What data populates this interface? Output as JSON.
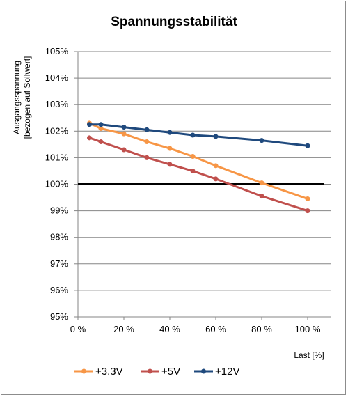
{
  "chart_data": {
    "type": "line",
    "title": "Spannungsstabilität",
    "ylabel_line1": "Ausgangsspannung",
    "ylabel_line2": "[bezogen auf Sollwert]",
    "xlabel": "Last [%]",
    "xlim": [
      0,
      110
    ],
    "ylim": [
      95,
      105
    ],
    "x_ticks": [
      0,
      20,
      40,
      60,
      80,
      100
    ],
    "x_tick_labels": [
      "0 %",
      "20 %",
      "40 %",
      "60 %",
      "80 %",
      "100 %"
    ],
    "y_ticks": [
      95,
      96,
      97,
      98,
      99,
      100,
      101,
      102,
      103,
      104,
      105
    ],
    "y_tick_labels": [
      "95%",
      "96%",
      "97%",
      "98%",
      "99%",
      "100%",
      "101%",
      "102%",
      "103%",
      "104%",
      "105%"
    ],
    "grid": "horizontal",
    "legend_position": "bottom",
    "reference_line": {
      "y": 100,
      "color": "#000000"
    },
    "series": [
      {
        "name": "+3.3V",
        "color": "#F79646",
        "x": [
          5,
          10,
          20,
          30,
          40,
          50,
          60,
          80,
          100
        ],
        "values": [
          102.3,
          102.1,
          101.9,
          101.6,
          101.35,
          101.05,
          100.7,
          100.05,
          99.45
        ]
      },
      {
        "name": "+5V",
        "color": "#C0504D",
        "x": [
          5,
          10,
          20,
          30,
          40,
          50,
          60,
          80,
          100
        ],
        "values": [
          101.75,
          101.6,
          101.3,
          101.0,
          100.75,
          100.5,
          100.2,
          99.55,
          99.0
        ]
      },
      {
        "name": "+12V",
        "color": "#1F497D",
        "x": [
          5,
          10,
          20,
          30,
          40,
          50,
          60,
          80,
          100
        ],
        "values": [
          102.25,
          102.25,
          102.15,
          102.05,
          101.95,
          101.85,
          101.8,
          101.65,
          101.45
        ]
      }
    ]
  }
}
